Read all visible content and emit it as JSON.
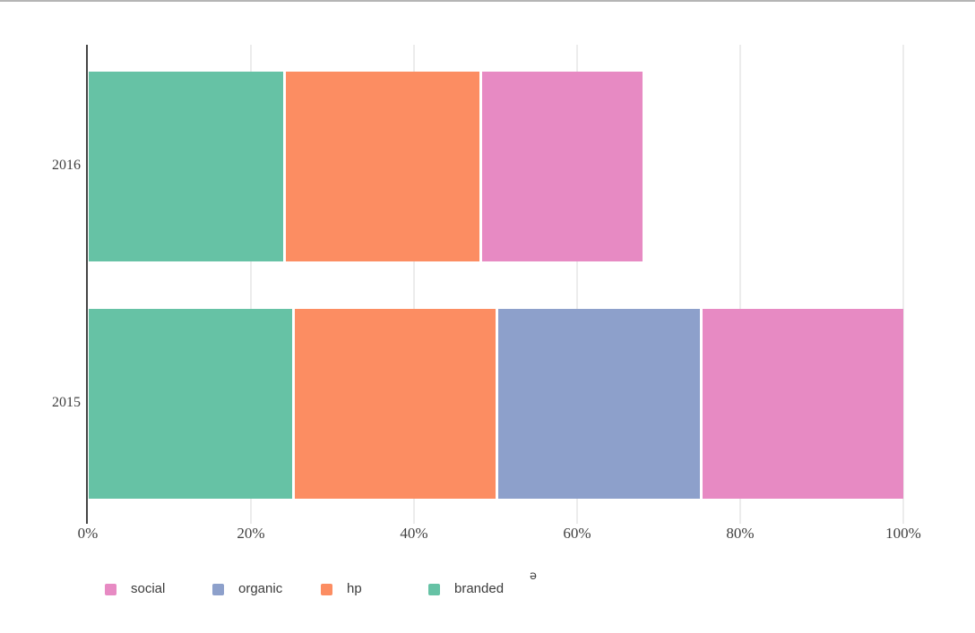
{
  "window": {
    "background": "#ffffff",
    "top_border_color": "#b5b5b5"
  },
  "chart_data": {
    "type": "bar",
    "orientation": "horizontal",
    "barmode": "stacked",
    "title": "",
    "xlabel": "",
    "ylabel": "",
    "categories": [
      "2016",
      "2015"
    ],
    "series": [
      {
        "name": "branded",
        "color": "#66c2a5",
        "values": [
          24,
          25
        ]
      },
      {
        "name": "hp",
        "color": "#fc8d62",
        "values": [
          24,
          25
        ]
      },
      {
        "name": "organic",
        "color": "#8da0cb",
        "values": [
          0,
          25
        ]
      },
      {
        "name": "social",
        "color": "#e78ac3",
        "values": [
          20,
          25
        ]
      }
    ],
    "bar_totals": [
      68,
      100
    ],
    "x_ticks": [
      {
        "value": 0,
        "label": "0%"
      },
      {
        "value": 20,
        "label": "20%"
      },
      {
        "value": 40,
        "label": "40%"
      },
      {
        "value": 60,
        "label": "60%"
      },
      {
        "value": 80,
        "label": "80%"
      },
      {
        "value": 100,
        "label": "100%"
      }
    ],
    "xlim": [
      0,
      100
    ],
    "grid": true,
    "gridline_color": "#ececec",
    "axis_line_color": "#444444",
    "tick_label_color": "#3f3f3f",
    "legend_position": "bottom",
    "legend_order": [
      "social",
      "organic",
      "hp",
      "branded"
    ],
    "legend_text_color": "#3c3c3c",
    "legend_extra_glyph": "ǝ"
  }
}
